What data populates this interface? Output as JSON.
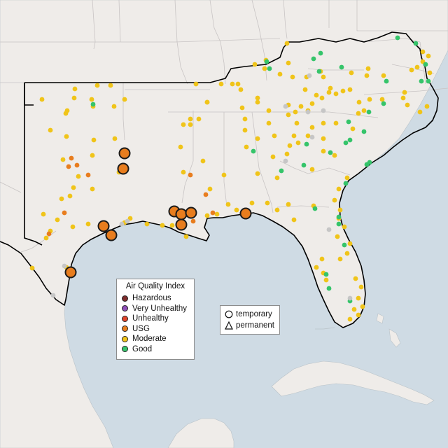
{
  "legend": {
    "title": "Air Quality Index",
    "categories": [
      {
        "label": "Hazardous",
        "color": "#7e2d2d"
      },
      {
        "label": "Very Unhealthy",
        "color": "#8e4fb8"
      },
      {
        "label": "Unhealthy",
        "color": "#e0452b"
      },
      {
        "label": "USG",
        "color": "#e87d1e"
      },
      {
        "label": "Moderate",
        "color": "#f0c419"
      },
      {
        "label": "Good",
        "color": "#35c46a"
      }
    ],
    "types": [
      {
        "label": "temporary",
        "symbol": "circle-icon"
      },
      {
        "label": "permanent",
        "symbol": "triangle-icon"
      }
    ]
  },
  "colors": {
    "ocean": "#cfdbe4",
    "land": "#efece9",
    "state_border": "#c8c4c4",
    "region_outline": "#000000",
    "no_data_marker": "#c6c6c6"
  }
}
